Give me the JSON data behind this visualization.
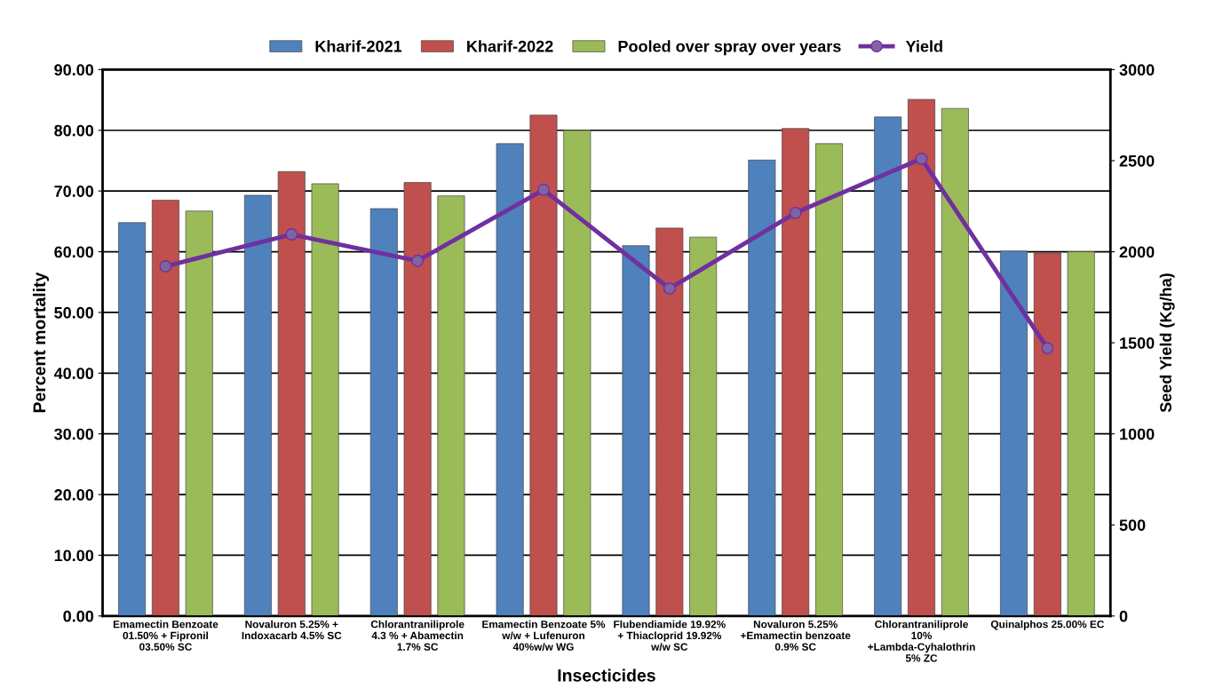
{
  "chart_data": {
    "type": "bar",
    "xlabel": "Insecticides",
    "ylabel": "Percent mortality",
    "y2label": "Seed Yield (Kg/ha)",
    "categories": [
      "Emamectin Benzoate 01.50% + Fipronil 03.50% SC",
      "Novaluron 5.25% + Indoxacarb 4.5% SC",
      "Chlorantraniliprole 4.3 % + Abamectin 1.7% SC",
      "Emamectin Benzoate 5% w/w + Lufenuron 40%w/w WG",
      "Flubendiamide 19.92% + Thiacloprid 19.92% w/w SC",
      "Novaluron 5.25% +Emamectin benzoate 0.9% SC",
      "Chlorantraniliprole 10% +Lambda-Cyhalothrin 5% ZC",
      "Quinalphos 25.00% EC"
    ],
    "series": [
      {
        "name": "Kharif-2021",
        "color": "#4f81bd",
        "values": [
          64.8,
          69.3,
          67.1,
          77.8,
          61.0,
          75.1,
          82.2,
          60.1
        ]
      },
      {
        "name": "Kharif-2022",
        "color": "#c0504d",
        "values": [
          68.5,
          73.2,
          71.4,
          82.5,
          63.9,
          80.3,
          85.1,
          59.8
        ]
      },
      {
        "name": "Pooled over spray over years",
        "color": "#9bbb59",
        "values": [
          66.7,
          71.2,
          69.2,
          80.0,
          62.4,
          77.8,
          83.6,
          60.0
        ]
      },
      {
        "name": "Yield",
        "type": "line",
        "axis": "y2",
        "color": "#7030a0",
        "values": [
          1920,
          2095,
          1950,
          2340,
          1798,
          2213,
          2511,
          1470
        ]
      }
    ],
    "ylim": [
      0,
      90
    ],
    "yticks": [
      {
        "value": 0,
        "label": "0.00"
      },
      {
        "value": 10,
        "label": "10.00"
      },
      {
        "value": 20,
        "label": "20.00"
      },
      {
        "value": 30,
        "label": "30.00"
      },
      {
        "value": 40,
        "label": "40.00"
      },
      {
        "value": 50,
        "label": "50.00"
      },
      {
        "value": 60,
        "label": "60.00"
      },
      {
        "value": 70,
        "label": "70.00"
      },
      {
        "value": 80,
        "label": "80.00"
      },
      {
        "value": 90,
        "label": "90.00"
      }
    ],
    "y2lim": [
      0,
      3000
    ],
    "y2ticks": [
      0,
      500,
      1000,
      1500,
      2000,
      2500,
      3000
    ],
    "grid": "y",
    "legend": "top",
    "marker": "circle",
    "line_style": "solid"
  }
}
